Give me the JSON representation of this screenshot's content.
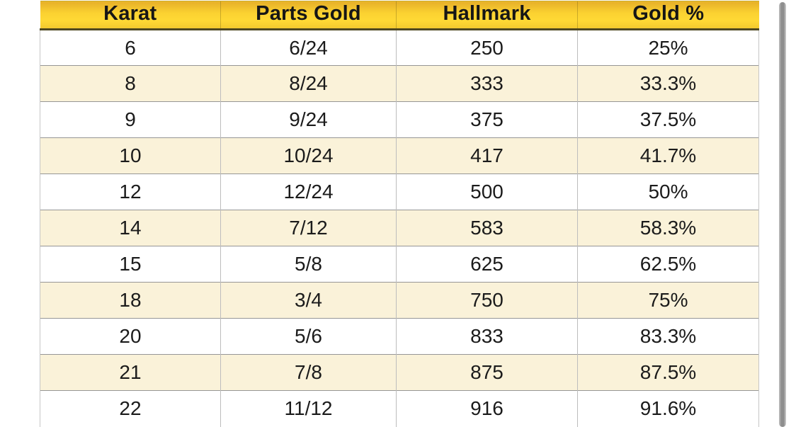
{
  "table": {
    "name": "gold-purity-table",
    "columns": [
      {
        "key": "karat",
        "label": "Karat"
      },
      {
        "key": "parts",
        "label": "Parts Gold"
      },
      {
        "key": "hallmark",
        "label": "Hallmark"
      },
      {
        "key": "gold",
        "label": "Gold %"
      }
    ],
    "rows": [
      [
        "6",
        "6/24",
        "250",
        "25%"
      ],
      [
        "8",
        "8/24",
        "333",
        "33.3%"
      ],
      [
        "9",
        "9/24",
        "375",
        "37.5%"
      ],
      [
        "10",
        "10/24",
        "417",
        "41.7%"
      ],
      [
        "12",
        "12/24",
        "500",
        "50%"
      ],
      [
        "14",
        "7/12",
        "583",
        "58.3%"
      ],
      [
        "15",
        "5/8",
        "625",
        "62.5%"
      ],
      [
        "18",
        "3/4",
        "750",
        "75%"
      ],
      [
        "20",
        "5/6",
        "833",
        "83.3%"
      ],
      [
        "21",
        "7/8",
        "875",
        "87.5%"
      ],
      [
        "22",
        "11/12",
        "916",
        "91.6%"
      ]
    ],
    "colors": {
      "header_gradient_top": "#e7af29",
      "header_gradient_bottom": "#ffd935",
      "header_underline": "#4f4820",
      "row_alternate": "#faf2d9",
      "row_plain": "#ffffff",
      "grid_vertical": "#bdbdbd",
      "grid_horizontal": "#969696",
      "text": "#1b1b1b"
    }
  },
  "scrollbar": {
    "color": "#8e8e8e"
  }
}
